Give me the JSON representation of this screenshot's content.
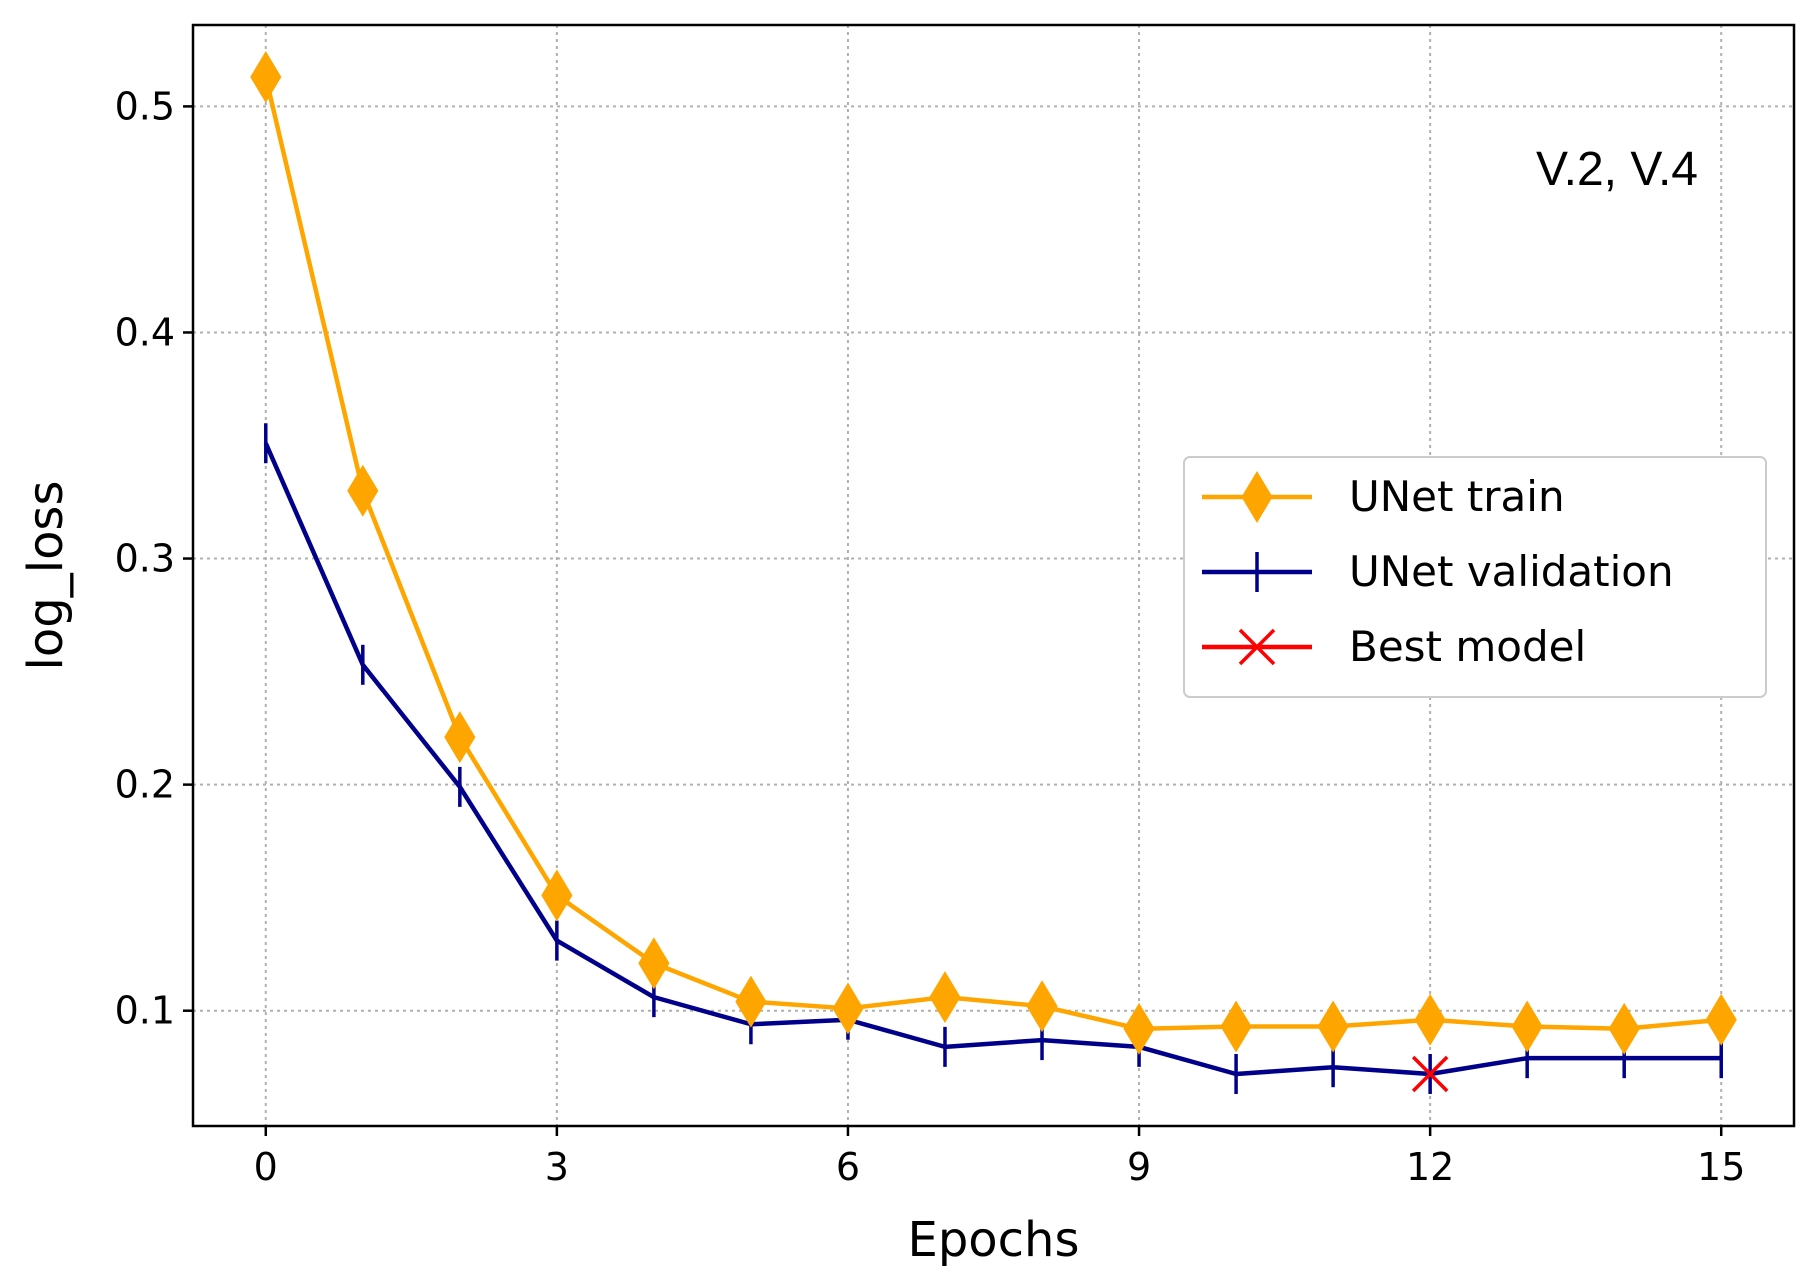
{
  "chart_data": {
    "type": "line",
    "title": "",
    "xlabel": "Epochs",
    "ylabel": "log_loss",
    "annotation": "V.2, V.4",
    "xlim": [
      -0.75,
      15.75
    ],
    "ylim": [
      0.049,
      0.536
    ],
    "xticks": [
      0,
      3,
      6,
      9,
      12,
      15
    ],
    "xtick_labels": [
      "0",
      "3",
      "6",
      "9",
      "12",
      "15"
    ],
    "yticks": [
      0.1,
      0.2,
      0.3,
      0.4,
      0.5
    ],
    "ytick_labels": [
      "0.1",
      "0.2",
      "0.3",
      "0.4",
      "0.5"
    ],
    "grid": true,
    "legend_position": "center-right",
    "series": [
      {
        "name": "UNet train",
        "color": "#FFA500",
        "marker": "diamond",
        "x": [
          0,
          1,
          2,
          3,
          4,
          5,
          6,
          7,
          8,
          9,
          10,
          11,
          12,
          13,
          14,
          15
        ],
        "values": [
          0.513,
          0.33,
          0.221,
          0.151,
          0.121,
          0.104,
          0.101,
          0.106,
          0.102,
          0.092,
          0.093,
          0.093,
          0.096,
          0.093,
          0.092,
          0.096
        ]
      },
      {
        "name": "UNet validation",
        "color": "#00008B",
        "marker": "plus",
        "x": [
          0,
          1,
          2,
          3,
          4,
          5,
          6,
          7,
          8,
          9,
          10,
          11,
          12,
          13,
          14,
          15
        ],
        "values": [
          0.351,
          0.253,
          0.199,
          0.131,
          0.106,
          0.094,
          0.096,
          0.084,
          0.087,
          0.084,
          0.072,
          0.075,
          0.072,
          0.079,
          0.079,
          0.079
        ]
      },
      {
        "name": "Best model",
        "color": "#FF0000",
        "marker": "x",
        "x": [
          12
        ],
        "values": [
          0.072
        ]
      }
    ]
  }
}
